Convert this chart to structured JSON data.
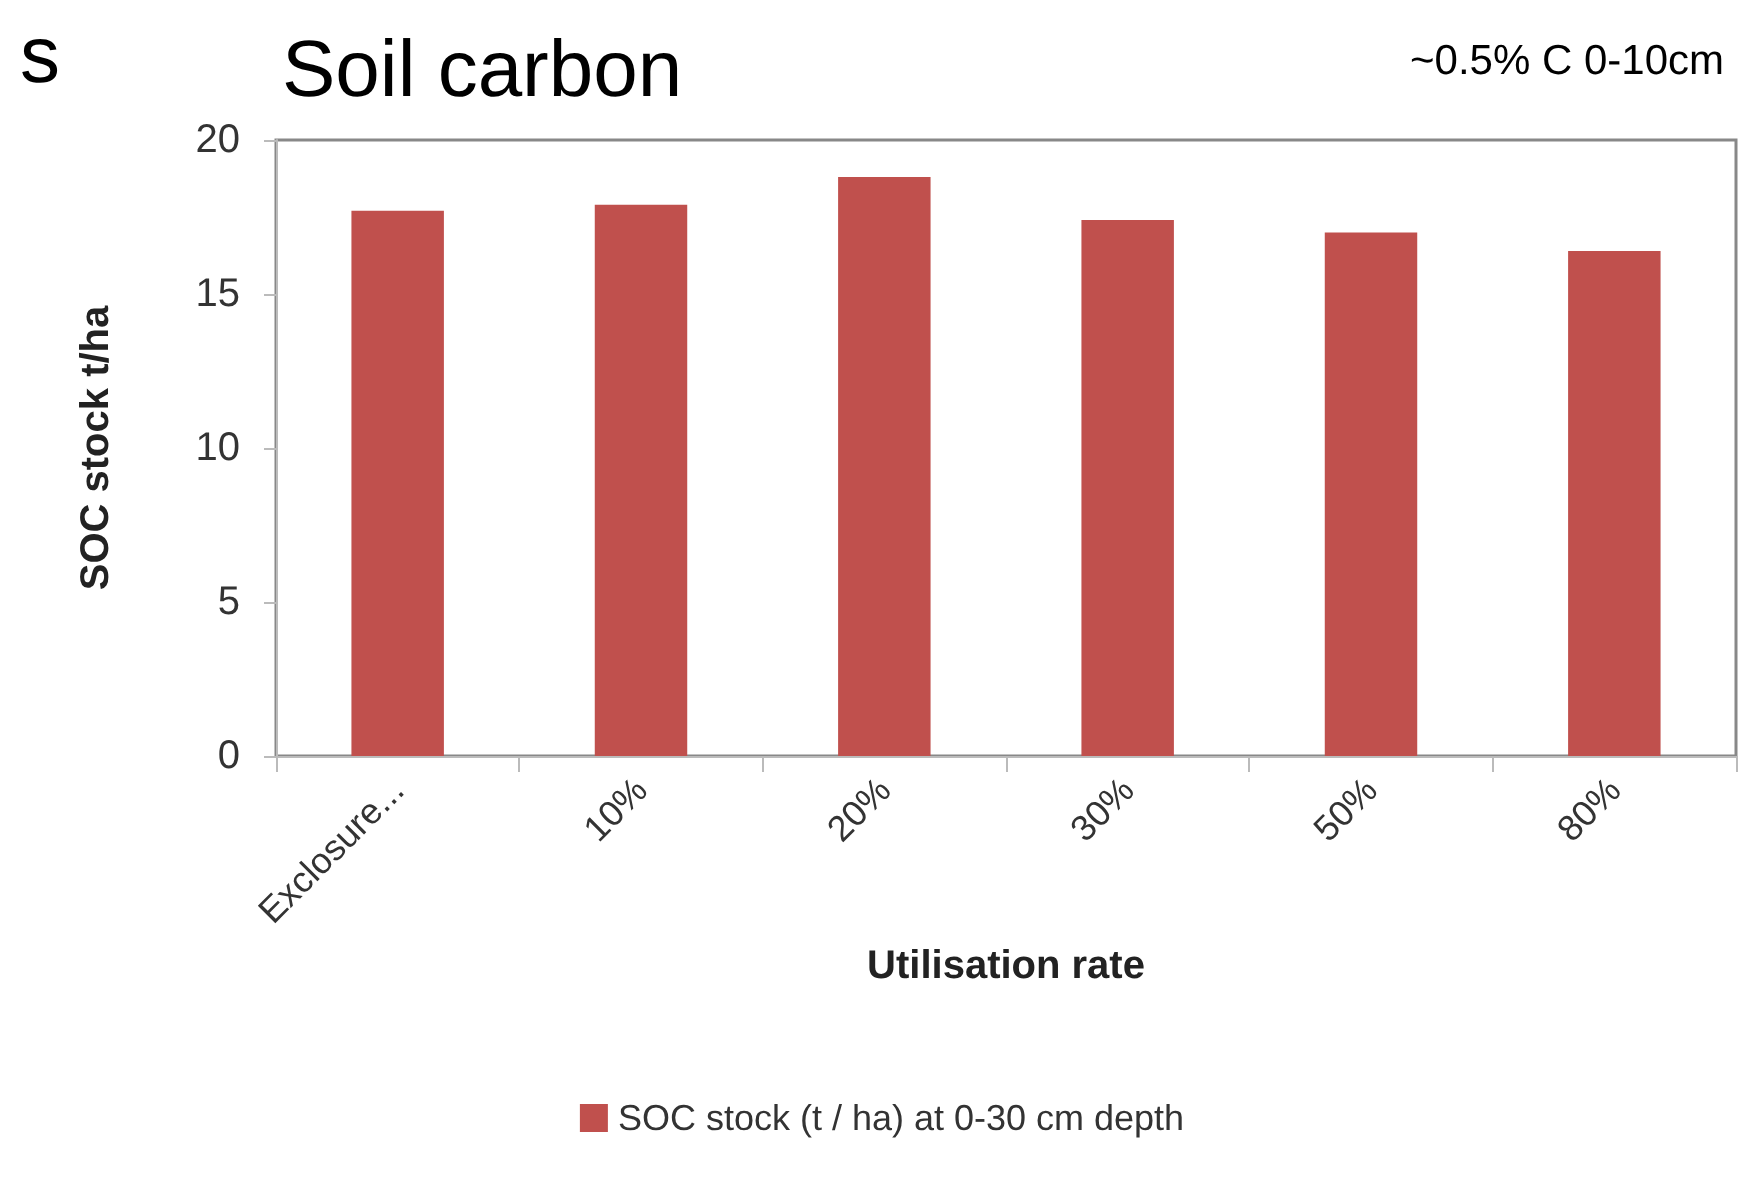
{
  "chart_data": {
    "type": "bar",
    "title": "Soil carbon",
    "annotations": [
      "s",
      "~0.5% C 0-10cm"
    ],
    "categories": [
      "Exclosure...",
      "10%",
      "20%",
      "30%",
      "50%",
      "80%"
    ],
    "series": [
      {
        "name": "SOC stock (t / ha) at 0-30 cm depth",
        "color": "#c0504d",
        "values": [
          17.7,
          17.9,
          18.8,
          17.4,
          17.0,
          16.4
        ]
      }
    ],
    "xlabel": "Utilisation rate",
    "ylabel": "SOC stock t/ha",
    "ylim": [
      0,
      20
    ],
    "yticks": [
      0,
      5,
      10,
      15,
      20
    ],
    "grid": false,
    "legend": "bottom"
  }
}
